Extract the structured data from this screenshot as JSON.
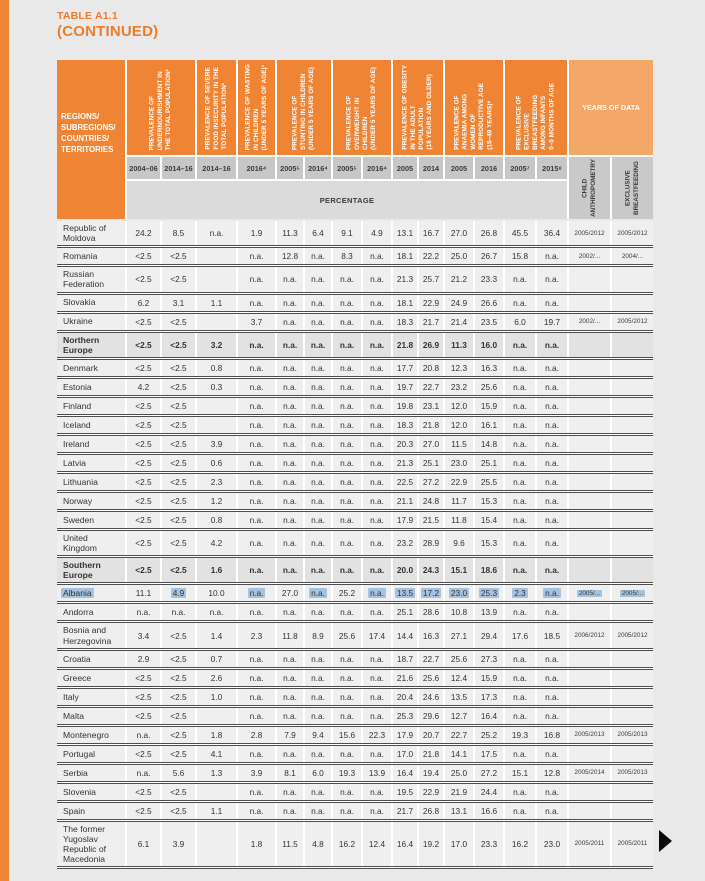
{
  "title": {
    "line1": "TABLE A1.1",
    "line2": "(CONTINUED)"
  },
  "colors": {
    "accent_orange": "#ee8434",
    "light_orange": "#f3a869",
    "year_band": "#c7c7c7",
    "percentage_band": "#dbdbdb",
    "row_bg": "#efefef",
    "aggregate_row_bg": "#e2e2e2",
    "rule": "#4d4d4d",
    "selection_highlight": "#a5c3df"
  },
  "header": {
    "region_label": "REGIONS/\nSUBREGIONS/\nCOUNTRIES/\nTERRITORIES",
    "groups": [
      {
        "label": "PREVALENCE OF\nUNDERNOURISHMENT IN\nTHE TOTAL POPULATION¹"
      },
      {
        "label": "PREVALENCE OF SEVERE\nFOOD INSECURITY IN THE\nTOTAL POPULATION²"
      },
      {
        "label": "PREVALENCE OF WASTING\nIN CHILDREN\n(UNDER 5 YEARS OF AGE)³"
      },
      {
        "label": "PREVALENCE OF\nSTUNTING IN CHILDREN\n(UNDER 5 YEARS OF AGE)"
      },
      {
        "label": "PREVALENCE OF\nOVERWEIGHT IN\nCHILDREN\n(UNDER 5 YEARS OF AGE)"
      },
      {
        "label": "PREVALENCE OF OBESITY\nIN THE ADULT\nPOPULATION\n(18 YEARS AND OLDER)"
      },
      {
        "label": "PREVALENCE OF\nANAEMIA AMONG\nWOMEN OF\nREPRODUCTIVE AGE\n(15–49 YEARS)⁶"
      },
      {
        "label": "PREVALENCE OF\nEXCLUSIVE\nBREASTFEEDING\nAMONG INFANTS\n0–5 MONTHS OF AGE"
      }
    ],
    "years_of_data": {
      "label": "YEARS OF DATA",
      "sub1": "CHILD\nANTHROPOMETRY",
      "sub2": "EXCLUSIVE\nBREASTFEEDING"
    },
    "year_row": [
      "2004–06",
      "2014–16",
      "2014–16",
      "2016⁴",
      "2005⁵",
      "2016⁴",
      "2005⁵",
      "2016⁴",
      "2005",
      "2014",
      "2005",
      "2016",
      "2005⁷",
      "2015⁸"
    ],
    "percentage_label": "PERCENTAGE"
  },
  "columns": [
    "undernourishment-2004-06",
    "undernourishment-2014-16",
    "food-insecurity-2014-16",
    "wasting-2016",
    "stunting-2005",
    "stunting-2016",
    "overweight-2005",
    "overweight-2016",
    "obesity-2005",
    "obesity-2014",
    "anaemia-2005",
    "anaemia-2016",
    "breastfeeding-2005",
    "breastfeeding-2015"
  ],
  "rows": [
    {
      "name": "Republic of Moldova",
      "values": [
        "24.2",
        "8.5",
        "n.a.",
        "1.9",
        "11.3",
        "6.4",
        "9.1",
        "4.9",
        "13.1",
        "16.7",
        "27.0",
        "26.8",
        "45.5",
        "36.4"
      ],
      "years": [
        "2005/2012",
        "2005/2012"
      ]
    },
    {
      "name": "Romania",
      "values": [
        "<2.5",
        "<2.5",
        "",
        "n.a.",
        "12.8",
        "n.a.",
        "8.3",
        "n.a.",
        "18.1",
        "22.2",
        "25.0",
        "26.7",
        "15.8",
        "n.a."
      ],
      "years": [
        "2002/...",
        "2004/..."
      ]
    },
    {
      "name": "Russian Federation",
      "values": [
        "<2.5",
        "<2.5",
        "",
        "n.a.",
        "n.a.",
        "n.a.",
        "n.a.",
        "n.a.",
        "21.3",
        "25.7",
        "21.2",
        "23.3",
        "n.a.",
        "n.a."
      ],
      "years": [
        "",
        ""
      ]
    },
    {
      "name": "Slovakia",
      "values": [
        "6.2",
        "3.1",
        "1.1",
        "n.a.",
        "n.a.",
        "n.a.",
        "n.a.",
        "n.a.",
        "18.1",
        "22.9",
        "24.9",
        "26.6",
        "n.a.",
        "n.a."
      ],
      "years": [
        "",
        ""
      ]
    },
    {
      "name": "Ukraine",
      "values": [
        "<2.5",
        "<2.5",
        "",
        "3.7",
        "n.a.",
        "n.a.",
        "n.a.",
        "n.a.",
        "18.3",
        "21.7",
        "21.4",
        "23.5",
        "6.0",
        "19.7"
      ],
      "years": [
        "2002/...",
        "2005/2012"
      ]
    },
    {
      "name": "Northern Europe",
      "bold": true,
      "values": [
        "<2.5",
        "<2.5",
        "3.2",
        "n.a.",
        "n.a.",
        "n.a.",
        "n.a.",
        "n.a.",
        "21.8",
        "26.9",
        "11.3",
        "16.0",
        "n.a.",
        "n.a."
      ],
      "years": [
        "",
        ""
      ]
    },
    {
      "name": "Denmark",
      "values": [
        "<2.5",
        "<2.5",
        "0.8",
        "n.a.",
        "n.a.",
        "n.a.",
        "n.a.",
        "n.a.",
        "17.7",
        "20.8",
        "12.3",
        "16.3",
        "n.a.",
        "n.a."
      ],
      "years": [
        "",
        ""
      ]
    },
    {
      "name": "Estonia",
      "values": [
        "4.2",
        "<2.5",
        "0.3",
        "n.a.",
        "n.a.",
        "n.a.",
        "n.a.",
        "n.a.",
        "19.7",
        "22.7",
        "23.2",
        "25.6",
        "n.a.",
        "n.a."
      ],
      "years": [
        "",
        ""
      ]
    },
    {
      "name": "Finland",
      "values": [
        "<2.5",
        "<2.5",
        "",
        "n.a.",
        "n.a.",
        "n.a.",
        "n.a.",
        "n.a.",
        "19.8",
        "23.1",
        "12.0",
        "15.9",
        "n.a.",
        "n.a."
      ],
      "years": [
        "",
        ""
      ]
    },
    {
      "name": "Iceland",
      "values": [
        "<2.5",
        "<2.5",
        "",
        "n.a.",
        "n.a.",
        "n.a.",
        "n.a.",
        "n.a.",
        "18.3",
        "21.8",
        "12.0",
        "16.1",
        "n.a.",
        "n.a."
      ],
      "years": [
        "",
        ""
      ]
    },
    {
      "name": "Ireland",
      "values": [
        "<2.5",
        "<2.5",
        "3.9",
        "n.a.",
        "n.a.",
        "n.a.",
        "n.a.",
        "n.a.",
        "20.3",
        "27.0",
        "11.5",
        "14.8",
        "n.a.",
        "n.a."
      ],
      "years": [
        "",
        ""
      ]
    },
    {
      "name": "Latvia",
      "values": [
        "<2.5",
        "<2.5",
        "0.6",
        "n.a.",
        "n.a.",
        "n.a.",
        "n.a.",
        "n.a.",
        "21.3",
        "25.1",
        "23.0",
        "25.1",
        "n.a.",
        "n.a."
      ],
      "years": [
        "",
        ""
      ]
    },
    {
      "name": "Lithuania",
      "values": [
        "<2.5",
        "<2.5",
        "2.3",
        "n.a.",
        "n.a.",
        "n.a.",
        "n.a.",
        "n.a.",
        "22.5",
        "27.2",
        "22.9",
        "25.5",
        "n.a.",
        "n.a."
      ],
      "years": [
        "",
        ""
      ]
    },
    {
      "name": "Norway",
      "values": [
        "<2.5",
        "<2.5",
        "1.2",
        "n.a.",
        "n.a.",
        "n.a.",
        "n.a.",
        "n.a.",
        "21.1",
        "24.8",
        "11.7",
        "15.3",
        "n.a.",
        "n.a."
      ],
      "years": [
        "",
        ""
      ]
    },
    {
      "name": "Sweden",
      "values": [
        "<2.5",
        "<2.5",
        "0.8",
        "n.a.",
        "n.a.",
        "n.a.",
        "n.a.",
        "n.a.",
        "17.9",
        "21.5",
        "11.8",
        "15.4",
        "n.a.",
        "n.a."
      ],
      "years": [
        "",
        ""
      ]
    },
    {
      "name": "United Kingdom",
      "values": [
        "<2.5",
        "<2.5",
        "4.2",
        "n.a.",
        "n.a.",
        "n.a.",
        "n.a.",
        "n.a.",
        "23.2",
        "28.9",
        "9.6",
        "15.3",
        "n.a.",
        "n.a."
      ],
      "years": [
        "",
        ""
      ]
    },
    {
      "name": "Southern Europe",
      "bold": true,
      "values": [
        "<2.5",
        "<2.5",
        "1.6",
        "n.a.",
        "n.a.",
        "n.a.",
        "n.a.",
        "n.a.",
        "20.0",
        "24.3",
        "15.1",
        "18.6",
        "n.a.",
        "n.a."
      ],
      "years": [
        "",
        ""
      ]
    },
    {
      "name": "Albania",
      "values": [
        "11.1",
        "4.9",
        "10.0",
        "n.a.",
        "27.0",
        "n.a.",
        "25.2",
        "n.a.",
        "13.5",
        "17.2",
        "23.0",
        "25.3",
        "2.3",
        "n.a."
      ],
      "years": [
        "2005/...",
        "2005/..."
      ],
      "highlight": {
        "name": true,
        "values": [
          1,
          3,
          5,
          7,
          8,
          9,
          10,
          11,
          12,
          13
        ],
        "years": [
          0,
          1
        ]
      }
    },
    {
      "name": "Andorra",
      "values": [
        "n.a.",
        "n.a.",
        "n.a.",
        "n.a.",
        "n.a.",
        "n.a.",
        "n.a.",
        "n.a.",
        "25.1",
        "28.6",
        "10.8",
        "13.9",
        "n.a.",
        "n.a."
      ],
      "years": [
        "",
        ""
      ]
    },
    {
      "name": "Bosnia and Herzegovina",
      "values": [
        "3.4",
        "<2.5",
        "1.4",
        "2.3",
        "11.8",
        "8.9",
        "25.6",
        "17.4",
        "14.4",
        "16.3",
        "27.1",
        "29.4",
        "17.6",
        "18.5"
      ],
      "years": [
        "2006/2012",
        "2005/2012"
      ]
    },
    {
      "name": "Croatia",
      "values": [
        "2.9",
        "<2.5",
        "0.7",
        "n.a.",
        "n.a.",
        "n.a.",
        "n.a.",
        "n.a.",
        "18.7",
        "22.7",
        "25.6",
        "27.3",
        "n.a.",
        "n.a."
      ],
      "years": [
        "",
        ""
      ]
    },
    {
      "name": "Greece",
      "values": [
        "<2.5",
        "<2.5",
        "2.6",
        "n.a.",
        "n.a.",
        "n.a.",
        "n.a.",
        "n.a.",
        "21.6",
        "25.6",
        "12.4",
        "15.9",
        "n.a.",
        "n.a."
      ],
      "years": [
        "",
        ""
      ]
    },
    {
      "name": "Italy",
      "values": [
        "<2.5",
        "<2.5",
        "1.0",
        "n.a.",
        "n.a.",
        "n.a.",
        "n.a.",
        "n.a.",
        "20.4",
        "24.6",
        "13.5",
        "17.3",
        "n.a.",
        "n.a."
      ],
      "years": [
        "",
        ""
      ]
    },
    {
      "name": "Malta",
      "values": [
        "<2.5",
        "<2.5",
        "",
        "n.a.",
        "n.a.",
        "n.a.",
        "n.a.",
        "n.a.",
        "25.3",
        "29.6",
        "12.7",
        "16.4",
        "n.a.",
        "n.a."
      ],
      "years": [
        "",
        ""
      ]
    },
    {
      "name": "Montenegro",
      "values": [
        "n.a.",
        "<2.5",
        "1.8",
        "2.8",
        "7.9",
        "9.4",
        "15.6",
        "22.3",
        "17.9",
        "20.7",
        "22.7",
        "25.2",
        "19.3",
        "16.8"
      ],
      "years": [
        "2005/2013",
        "2005/2013"
      ]
    },
    {
      "name": "Portugal",
      "values": [
        "<2.5",
        "<2.5",
        "4.1",
        "n.a.",
        "n.a.",
        "n.a.",
        "n.a.",
        "n.a.",
        "17.0",
        "21.8",
        "14.1",
        "17.5",
        "n.a.",
        "n.a."
      ],
      "years": [
        "",
        ""
      ]
    },
    {
      "name": "Serbia",
      "values": [
        "n.a.",
        "5.6",
        "1.3",
        "3.9",
        "8.1",
        "6.0",
        "19.3",
        "13.9",
        "16.4",
        "19.4",
        "25.0",
        "27.2",
        "15.1",
        "12.8"
      ],
      "years": [
        "2005/2014",
        "2005/2013"
      ]
    },
    {
      "name": "Slovenia",
      "values": [
        "<2.5",
        "<2.5",
        "",
        "n.a.",
        "n.a.",
        "n.a.",
        "n.a.",
        "n.a.",
        "19.5",
        "22.9",
        "21.9",
        "24.4",
        "n.a.",
        "n.a."
      ],
      "years": [
        "",
        ""
      ]
    },
    {
      "name": "Spain",
      "values": [
        "<2.5",
        "<2.5",
        "1.1",
        "n.a.",
        "n.a.",
        "n.a.",
        "n.a.",
        "n.a.",
        "21.7",
        "26.8",
        "13.1",
        "16.6",
        "n.a.",
        "n.a."
      ],
      "years": [
        "",
        ""
      ]
    },
    {
      "name": "The former Yugoslav Republic of Macedonia",
      "values": [
        "6.1",
        "3.9",
        "",
        "1.8",
        "11.5",
        "4.8",
        "16.2",
        "12.4",
        "16.4",
        "19.2",
        "17.0",
        "23.3",
        "16.2",
        "23.0"
      ],
      "years": [
        "2005/2011",
        "2005/2011"
      ]
    }
  ]
}
